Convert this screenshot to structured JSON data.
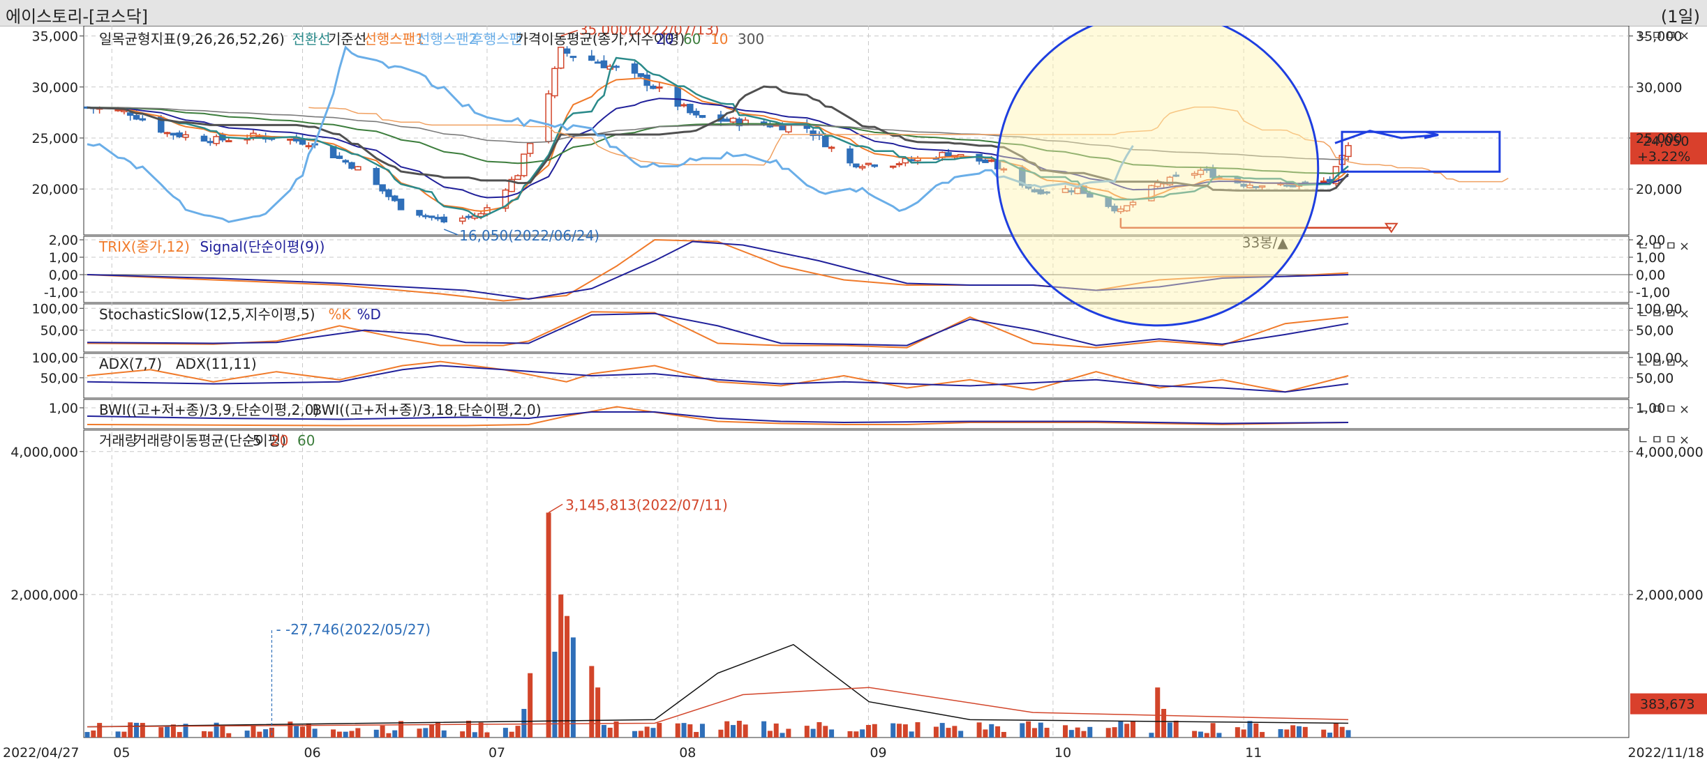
{
  "window": {
    "title": "에이스토리-[코스닥]",
    "period": "(1일)"
  },
  "colors": {
    "up": "#d2452a",
    "down": "#2f6fb9",
    "orange": "#f07a2a",
    "navy": "#20209a",
    "green": "#3c7d3c",
    "gray": "#505050",
    "lightblue": "#6aaee8",
    "teal": "#2a8a8a",
    "badge": "#d9402c",
    "annot_blue": "#1e3ee0"
  },
  "chart_data": [
    {
      "type": "candlestick",
      "legend": [
        "일목균형지표(9,26,26,52,26)",
        "전환선",
        "기준선",
        "선행스팬1",
        "선행스팬2",
        "후행스팬",
        "가격이동평균(종가,지수이평)",
        "20",
        "60",
        "10",
        "300"
      ],
      "yticks": [
        "35,000",
        "30,000",
        "25,000",
        "20,000"
      ],
      "ytick_values": [
        35000,
        30000,
        25000,
        20000
      ],
      "ylim": [
        15500,
        36000
      ],
      "annotations": {
        "high": "35,000(2022/07/13)",
        "low": "16,050(2022/06/24)",
        "count": "33봉/▲"
      },
      "last_price": "24,050",
      "last_change": "+3.22%",
      "ohlc_anchors": [
        {
          "date": "2022/04/27",
          "close": 28000
        },
        {
          "date": "2022/05/04",
          "close": 27500
        },
        {
          "date": "2022/05/10",
          "close": 25500
        },
        {
          "date": "2022/05/18",
          "close": 24800
        },
        {
          "date": "2022/05/25",
          "close": 25200
        },
        {
          "date": "2022/06/02",
          "close": 24600
        },
        {
          "date": "2022/06/10",
          "close": 22000
        },
        {
          "date": "2022/06/17",
          "close": 18200
        },
        {
          "date": "2022/06/24",
          "close": 16800
        },
        {
          "date": "2022/06/30",
          "close": 17500
        },
        {
          "date": "2022/07/06",
          "close": 21500
        },
        {
          "date": "2022/07/11",
          "close": 29500
        },
        {
          "date": "2022/07/13",
          "close": 33500
        },
        {
          "date": "2022/07/19",
          "close": 32500
        },
        {
          "date": "2022/07/27",
          "close": 30500
        },
        {
          "date": "2022/08/04",
          "close": 27000
        },
        {
          "date": "2022/08/12",
          "close": 26500
        },
        {
          "date": "2022/08/22",
          "close": 26000
        },
        {
          "date": "2022/08/29",
          "close": 22500
        },
        {
          "date": "2022/09/05",
          "close": 22500
        },
        {
          "date": "2022/09/14",
          "close": 23500
        },
        {
          "date": "2022/09/21",
          "close": 22500
        },
        {
          "date": "2022/09/28",
          "close": 19800
        },
        {
          "date": "2022/10/05",
          "close": 20000
        },
        {
          "date": "2022/10/12",
          "close": 17800
        },
        {
          "date": "2022/10/18",
          "close": 20500
        },
        {
          "date": "2022/10/25",
          "close": 21800
        },
        {
          "date": "2022/11/01",
          "close": 20500
        },
        {
          "date": "2022/11/08",
          "close": 20300
        },
        {
          "date": "2022/11/15",
          "close": 20800
        },
        {
          "date": "2022/11/18",
          "close": 24050
        }
      ]
    },
    {
      "type": "line",
      "legend": [
        "TRIX(종가,12)",
        "Signal(단순이평(9))"
      ],
      "yticks": [
        "2,00",
        "1,00",
        "0,00",
        "-1,00"
      ],
      "ytick_values": [
        2,
        1,
        0,
        -1
      ],
      "ylim": [
        -1.6,
        2.2
      ],
      "series": [
        {
          "name": "TRIX(종가,12)",
          "x": [
            0,
            0.1,
            0.2,
            0.28,
            0.33,
            0.38,
            0.42,
            0.45,
            0.5,
            0.55,
            0.6,
            0.65,
            0.7,
            0.75,
            0.8,
            0.85,
            0.9,
            0.95,
            1
          ],
          "values": [
            0.0,
            -0.3,
            -0.6,
            -1.1,
            -1.5,
            -1.2,
            0.5,
            2.0,
            1.9,
            0.5,
            -0.3,
            -0.6,
            -0.6,
            -0.6,
            -0.9,
            -0.3,
            -0.1,
            -0.1,
            0.1
          ]
        },
        {
          "name": "Signal(단순이평(9))",
          "x": [
            0,
            0.1,
            0.2,
            0.3,
            0.35,
            0.4,
            0.45,
            0.48,
            0.52,
            0.58,
            0.65,
            0.7,
            0.75,
            0.8,
            0.85,
            0.9,
            0.95,
            1
          ],
          "values": [
            0.0,
            -0.2,
            -0.5,
            -0.9,
            -1.4,
            -0.8,
            0.8,
            1.9,
            1.7,
            0.8,
            -0.5,
            -0.6,
            -0.6,
            -0.9,
            -0.7,
            -0.2,
            -0.1,
            0.0
          ]
        }
      ]
    },
    {
      "type": "line",
      "legend": [
        "StochasticSlow(12,5,지수이평,5)",
        "%K",
        "%D"
      ],
      "yticks": [
        "100,00",
        "50,00"
      ],
      "ytick_values": [
        100,
        50
      ],
      "ylim": [
        0,
        110
      ],
      "series": [
        {
          "name": "%K",
          "x": [
            0,
            0.1,
            0.15,
            0.2,
            0.25,
            0.28,
            0.33,
            0.35,
            0.4,
            0.45,
            0.5,
            0.55,
            0.6,
            0.65,
            0.7,
            0.75,
            0.8,
            0.85,
            0.9,
            0.95,
            1
          ],
          "values": [
            20,
            18,
            25,
            60,
            30,
            15,
            15,
            25,
            92,
            90,
            20,
            15,
            15,
            10,
            80,
            20,
            10,
            25,
            15,
            65,
            80
          ]
        },
        {
          "name": "%D",
          "x": [
            0,
            0.1,
            0.15,
            0.22,
            0.27,
            0.3,
            0.35,
            0.4,
            0.45,
            0.5,
            0.55,
            0.6,
            0.65,
            0.7,
            0.75,
            0.8,
            0.85,
            0.9,
            0.95,
            1
          ],
          "values": [
            22,
            20,
            22,
            50,
            40,
            22,
            20,
            85,
            88,
            60,
            20,
            18,
            15,
            75,
            50,
            15,
            30,
            18,
            40,
            65
          ]
        }
      ]
    },
    {
      "type": "line",
      "legend": [
        "ADX(7,7)",
        "ADX(11,11)"
      ],
      "yticks": [
        "100,00",
        "50,00"
      ],
      "ytick_values": [
        100,
        50
      ],
      "ylim": [
        0,
        110
      ],
      "series": [
        {
          "name": "ADX(7,7)",
          "x": [
            0,
            0.05,
            0.1,
            0.15,
            0.2,
            0.25,
            0.28,
            0.33,
            0.38,
            0.4,
            0.45,
            0.5,
            0.55,
            0.6,
            0.65,
            0.7,
            0.75,
            0.8,
            0.85,
            0.9,
            0.95,
            1
          ],
          "values": [
            55,
            70,
            40,
            65,
            45,
            80,
            90,
            70,
            40,
            60,
            80,
            40,
            30,
            55,
            25,
            45,
            20,
            65,
            25,
            45,
            15,
            55
          ]
        },
        {
          "name": "ADX(11,11)",
          "x": [
            0,
            0.1,
            0.2,
            0.25,
            0.28,
            0.33,
            0.4,
            0.45,
            0.5,
            0.55,
            0.6,
            0.65,
            0.7,
            0.8,
            0.85,
            0.9,
            0.95,
            1
          ],
          "values": [
            40,
            35,
            40,
            70,
            80,
            70,
            55,
            60,
            45,
            35,
            40,
            35,
            30,
            45,
            30,
            25,
            15,
            35
          ]
        }
      ]
    },
    {
      "type": "line",
      "legend": [
        "BWI((고+저+종)/3,9,단순이평,2,0)",
        "BWI((고+저+종)/3,18,단순이평,2,0)"
      ],
      "yticks": [
        "1,00"
      ],
      "ytick_values": [
        1
      ],
      "ylim": [
        0,
        1.4
      ],
      "series": [
        {
          "name": "BWI((고+저+종)/3,9,단순이평,2,0)",
          "x": [
            0,
            0.2,
            0.3,
            0.35,
            0.38,
            0.42,
            0.46,
            0.5,
            0.55,
            0.6,
            0.65,
            0.7,
            0.8,
            0.9,
            1
          ],
          "values": [
            0.2,
            0.15,
            0.15,
            0.2,
            0.6,
            1.05,
            0.7,
            0.35,
            0.25,
            0.2,
            0.2,
            0.3,
            0.3,
            0.2,
            0.3
          ]
        },
        {
          "name": "BWI((고+저+종)/3,18,단순이평,2,0)",
          "x": [
            0,
            0.1,
            0.2,
            0.3,
            0.35,
            0.4,
            0.45,
            0.5,
            0.55,
            0.6,
            0.7,
            0.8,
            0.9,
            1
          ],
          "values": [
            0.6,
            0.5,
            0.45,
            0.55,
            0.5,
            0.8,
            0.8,
            0.5,
            0.35,
            0.3,
            0.35,
            0.35,
            0.25,
            0.3
          ]
        }
      ]
    },
    {
      "type": "bar",
      "legend": [
        "거래량",
        "거래량이동평균(단순이평)",
        "5",
        "20",
        "60"
      ],
      "yticks": [
        "4,000,000",
        "2,000,000"
      ],
      "ytick_values": [
        4000000,
        2000000
      ],
      "ylim": [
        0,
        4300000
      ],
      "annotations": {
        "high": "3,145,813(2022/07/11)",
        "low": "27,746(2022/05/27)"
      },
      "last_volume": "383,673",
      "volume_anchors": [
        {
          "date": "2022/07/07",
          "volume": 400000
        },
        {
          "date": "2022/07/08",
          "volume": 900000
        },
        {
          "date": "2022/07/11",
          "volume": 3145813
        },
        {
          "date": "2022/07/12",
          "volume": 1200000
        },
        {
          "date": "2022/07/13",
          "volume": 2000000
        },
        {
          "date": "2022/07/14",
          "volume": 1700000
        },
        {
          "date": "2022/07/15",
          "volume": 1400000
        },
        {
          "date": "2022/07/18",
          "volume": 1000000
        },
        {
          "date": "2022/07/19",
          "volume": 700000
        },
        {
          "date": "2022/10/18",
          "volume": 700000
        },
        {
          "date": "2022/10/19",
          "volume": 400000
        }
      ]
    }
  ],
  "x_axis": {
    "start_date": "2022/04/27",
    "end_date": "2022/11/18",
    "months": [
      "05",
      "06",
      "07",
      "08",
      "09",
      "10",
      "11"
    ]
  },
  "controls": [
    "ㄴ",
    "ㅁ",
    "ㅁ",
    "×"
  ]
}
